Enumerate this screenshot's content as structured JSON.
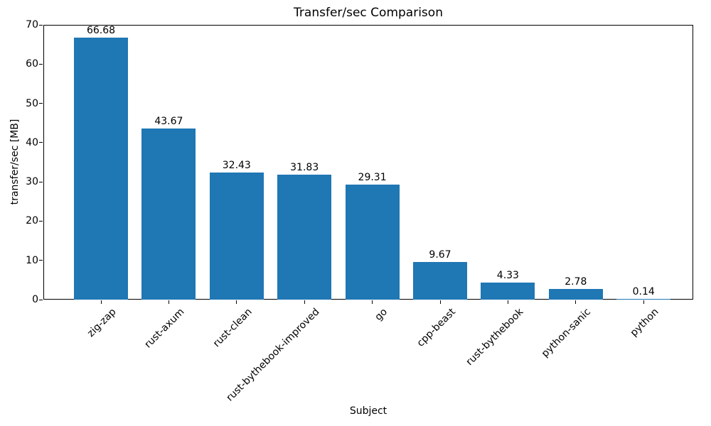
{
  "chart_data": {
    "type": "bar",
    "title": "Transfer/sec Comparison",
    "xlabel": "Subject",
    "ylabel": "transfer/sec [MB]",
    "categories": [
      "zig-zap",
      "rust-axum",
      "rust-clean",
      "rust-bythebook-improved",
      "go",
      "cpp-beast",
      "rust-bythebook",
      "python-sanic",
      "python"
    ],
    "values": [
      66.68,
      43.67,
      32.43,
      31.83,
      29.31,
      9.67,
      4.33,
      2.78,
      0.14
    ],
    "value_labels": [
      "66.68",
      "43.67",
      "32.43",
      "31.83",
      "29.31",
      "9.67",
      "4.33",
      "2.78",
      "0.14"
    ],
    "ylim": [
      0,
      70
    ],
    "yticks": [
      0,
      10,
      20,
      30,
      40,
      50,
      60,
      70
    ],
    "bar_color": "#1f77b4",
    "axis_color": "#000000",
    "grid": false,
    "legend_position": "none",
    "x_tick_rotation_deg": 45
  }
}
